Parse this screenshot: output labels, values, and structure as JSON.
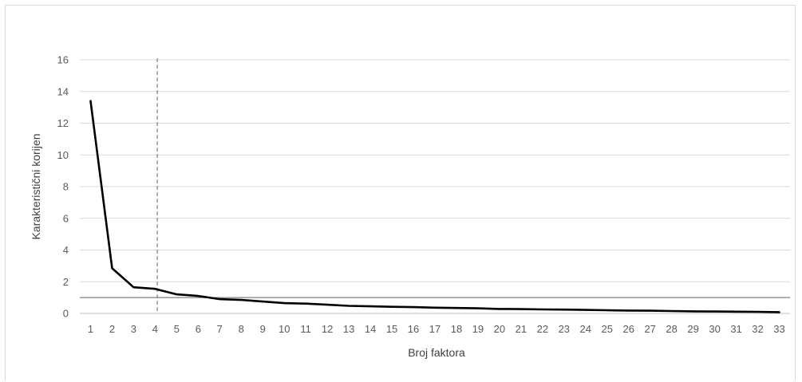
{
  "chart_data": {
    "type": "line",
    "title": "",
    "xlabel": "Broj faktora",
    "ylabel": "Karakteristični korijen",
    "categories": [
      "1",
      "2",
      "3",
      "4",
      "5",
      "6",
      "7",
      "8",
      "9",
      "10",
      "11",
      "12",
      "13",
      "14",
      "15",
      "16",
      "17",
      "18",
      "19",
      "20",
      "21",
      "22",
      "23",
      "24",
      "25",
      "26",
      "27",
      "28",
      "29",
      "30",
      "31",
      "32",
      "33"
    ],
    "series": [
      {
        "values": [
          13.4,
          2.85,
          1.65,
          1.55,
          1.2,
          1.1,
          0.9,
          0.85,
          0.75,
          0.65,
          0.62,
          0.55,
          0.48,
          0.45,
          0.42,
          0.4,
          0.36,
          0.34,
          0.32,
          0.28,
          0.27,
          0.25,
          0.24,
          0.22,
          0.2,
          0.18,
          0.17,
          0.15,
          0.13,
          0.12,
          0.11,
          0.1,
          0.08
        ],
        "color": "#000000"
      }
    ],
    "ylim": [
      0,
      16
    ],
    "yticks": [
      0,
      2,
      4,
      6,
      8,
      10,
      12,
      14,
      16
    ],
    "grid": true,
    "reference_line_y": 1,
    "cutoff_factor": 4,
    "colors": {
      "grid": "#d9d9d9",
      "reference": "#808080",
      "cutoff": "#808080",
      "series": "#000000"
    }
  }
}
